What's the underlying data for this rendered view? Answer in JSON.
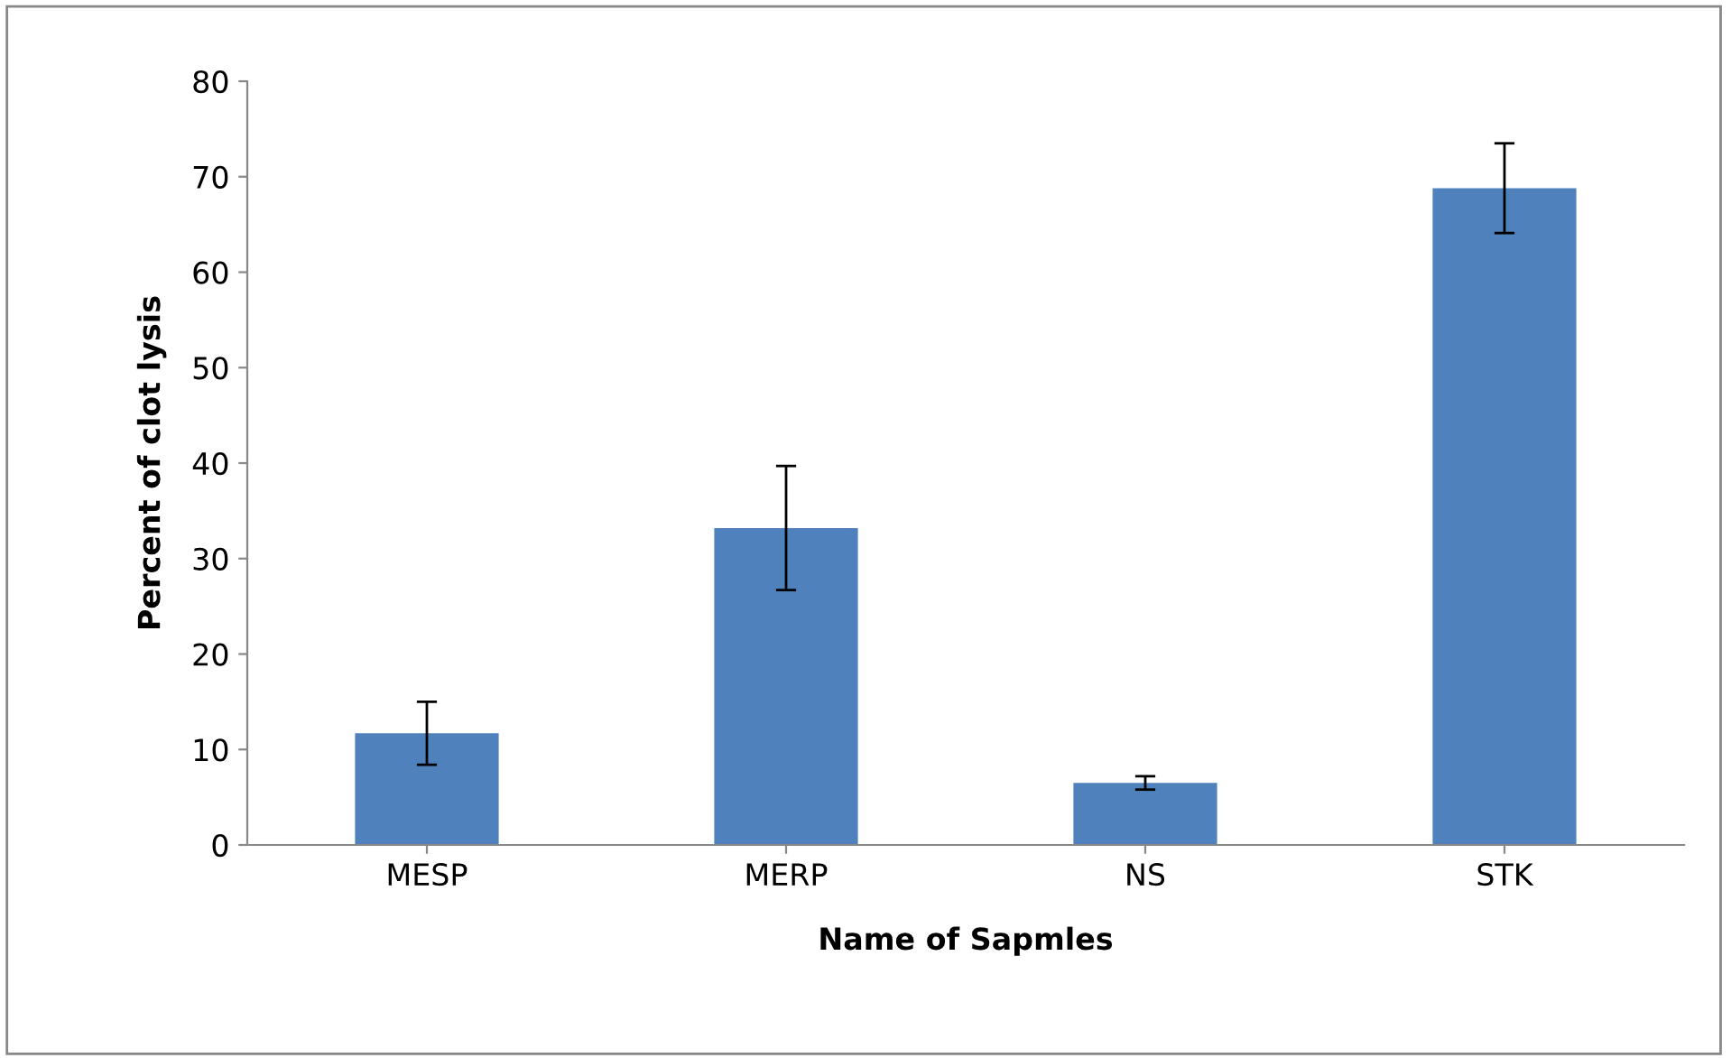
{
  "chart_data": {
    "type": "bar",
    "xlabel": "Name of Sapmles",
    "ylabel": "Percent of clot lysis",
    "categories": [
      "MESP",
      "MERP",
      "NS",
      "STK"
    ],
    "values": [
      11.7,
      33.2,
      6.5,
      68.8
    ],
    "errors": [
      3.3,
      6.5,
      0.7,
      4.7
    ],
    "color": "#4f81bd",
    "ylim": [
      0,
      80
    ],
    "yticks": [
      0,
      10,
      20,
      30,
      40,
      50,
      60,
      70,
      80
    ],
    "grid": false
  }
}
